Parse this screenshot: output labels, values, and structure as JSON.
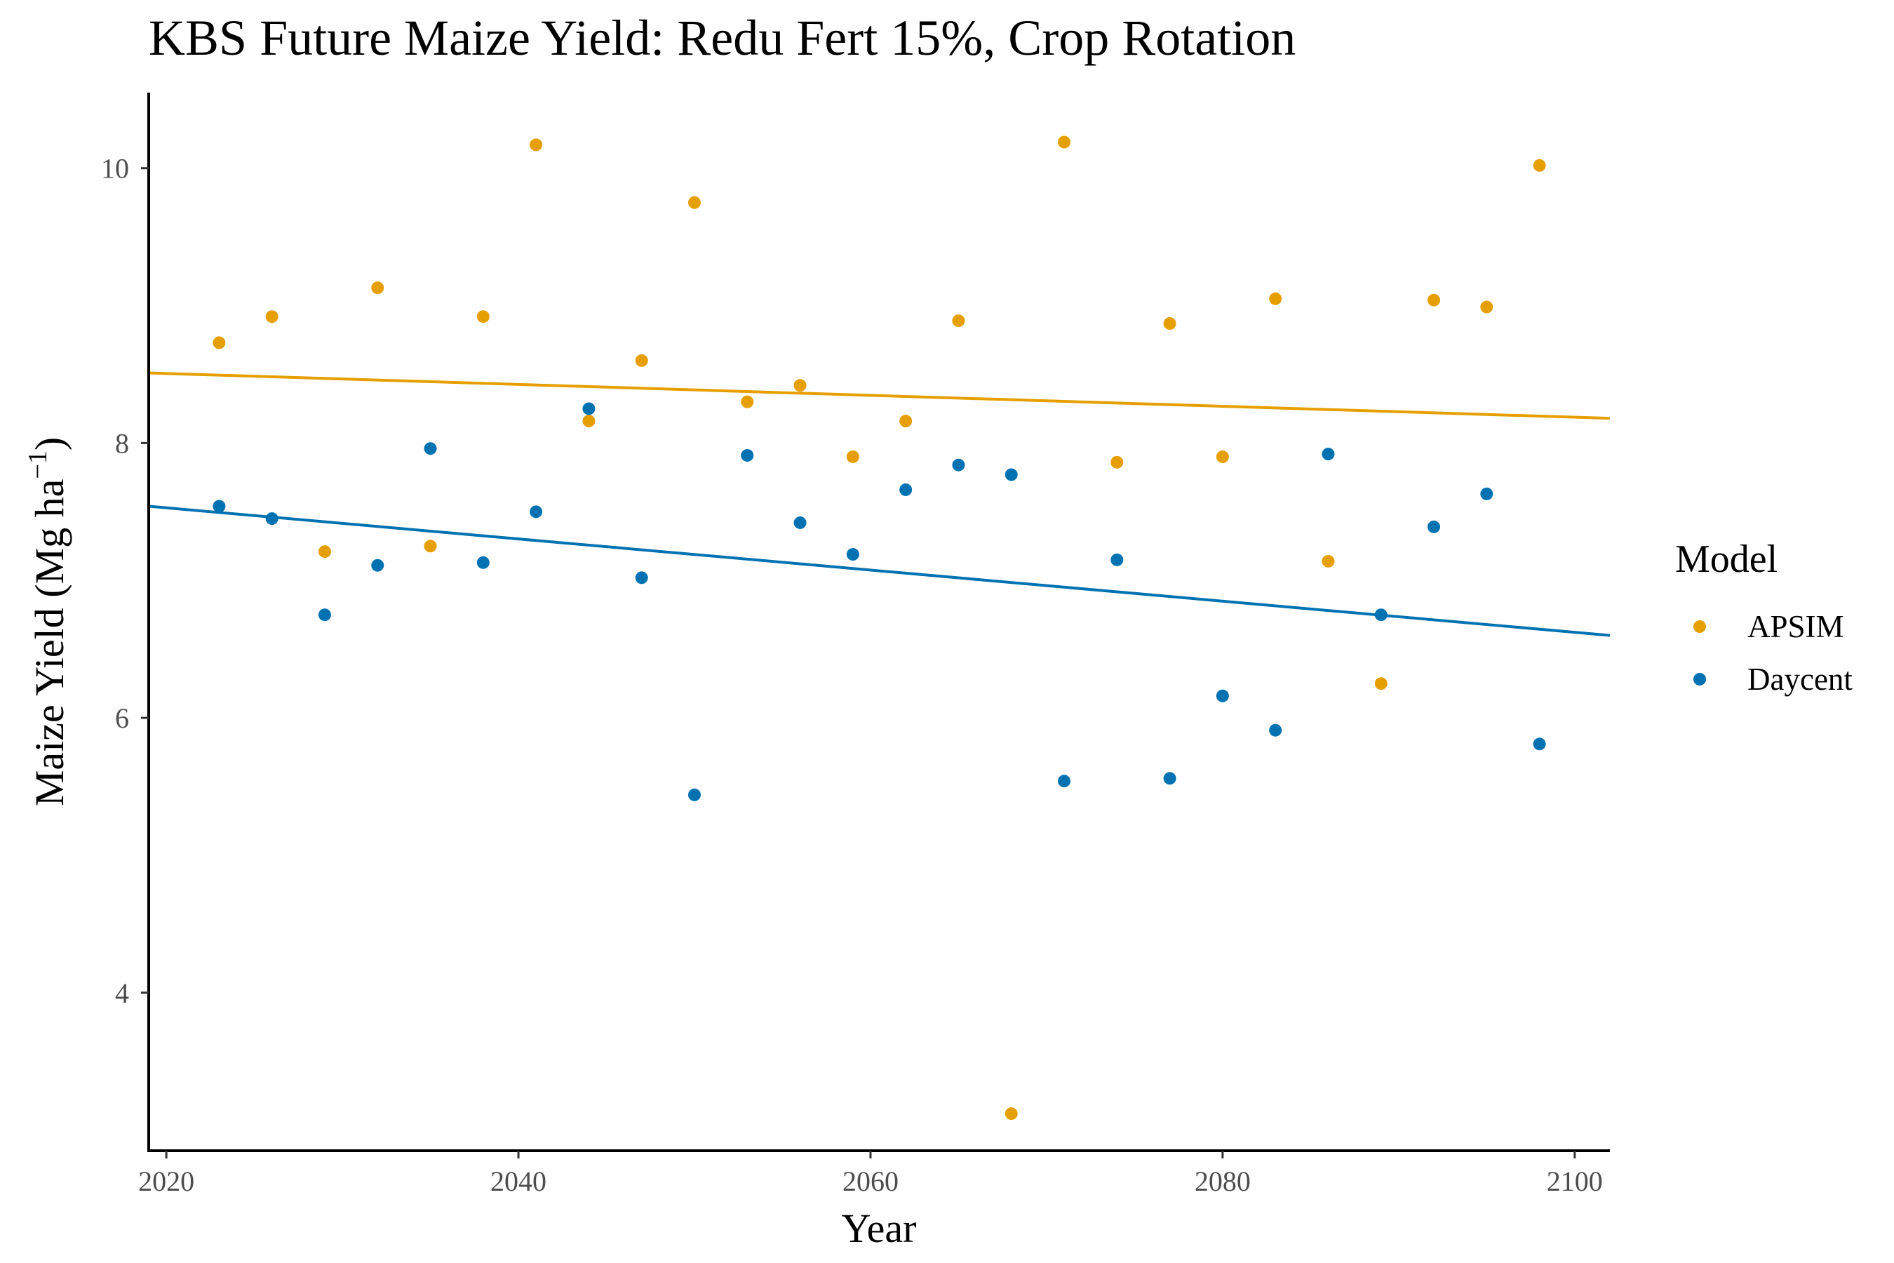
{
  "chart_data": {
    "type": "scatter",
    "title": "KBS Future Maize Yield:  Redu Fert 15%, Crop Rotation",
    "xlabel": "Year",
    "ylabel": "Maize Yield (Mg ha",
    "ylabel_sup": "−1",
    "ylabel_close": ")",
    "xlim": [
      2019,
      2102
    ],
    "ylim": [
      2.85,
      10.55
    ],
    "x_ticks": [
      2020,
      2040,
      2060,
      2080,
      2100
    ],
    "y_ticks": [
      4,
      6,
      8,
      10
    ],
    "x_tick_labels": [
      "2020",
      "2040",
      "2060",
      "2080",
      "2100"
    ],
    "y_tick_labels": [
      "4",
      "6",
      "8",
      "10"
    ],
    "grid": false,
    "legend": {
      "title": "Model",
      "position": "right"
    },
    "series": [
      {
        "name": "APSIM",
        "color": "#E69F00",
        "x": [
          2023,
          2026,
          2029,
          2032,
          2035,
          2038,
          2041,
          2044,
          2047,
          2050,
          2053,
          2056,
          2059,
          2062,
          2065,
          2068,
          2071,
          2074,
          2077,
          2080,
          2083,
          2086,
          2089,
          2092,
          2095,
          2098
        ],
        "y": [
          8.73,
          8.92,
          7.21,
          9.13,
          7.25,
          8.92,
          10.17,
          8.16,
          8.6,
          9.75,
          8.3,
          8.42,
          7.9,
          8.16,
          8.89,
          3.12,
          10.19,
          7.86,
          8.87,
          7.9,
          9.05,
          7.14,
          6.25,
          9.04,
          8.99,
          10.02
        ],
        "trend": [
          8.51,
          8.18
        ]
      },
      {
        "name": "Daycent",
        "color": "#0072B2",
        "x": [
          2023,
          2026,
          2029,
          2032,
          2035,
          2038,
          2041,
          2044,
          2047,
          2050,
          2053,
          2056,
          2059,
          2062,
          2065,
          2068,
          2071,
          2074,
          2077,
          2080,
          2083,
          2086,
          2089,
          2092,
          2095,
          2098
        ],
        "y": [
          7.54,
          7.45,
          6.75,
          7.11,
          7.96,
          7.13,
          7.5,
          8.25,
          7.02,
          5.44,
          7.91,
          7.42,
          7.19,
          7.66,
          7.84,
          7.77,
          5.54,
          7.15,
          5.56,
          6.16,
          5.91,
          7.92,
          6.75,
          7.39,
          7.63,
          5.81
        ],
        "trend": [
          7.54,
          6.6
        ]
      }
    ]
  }
}
